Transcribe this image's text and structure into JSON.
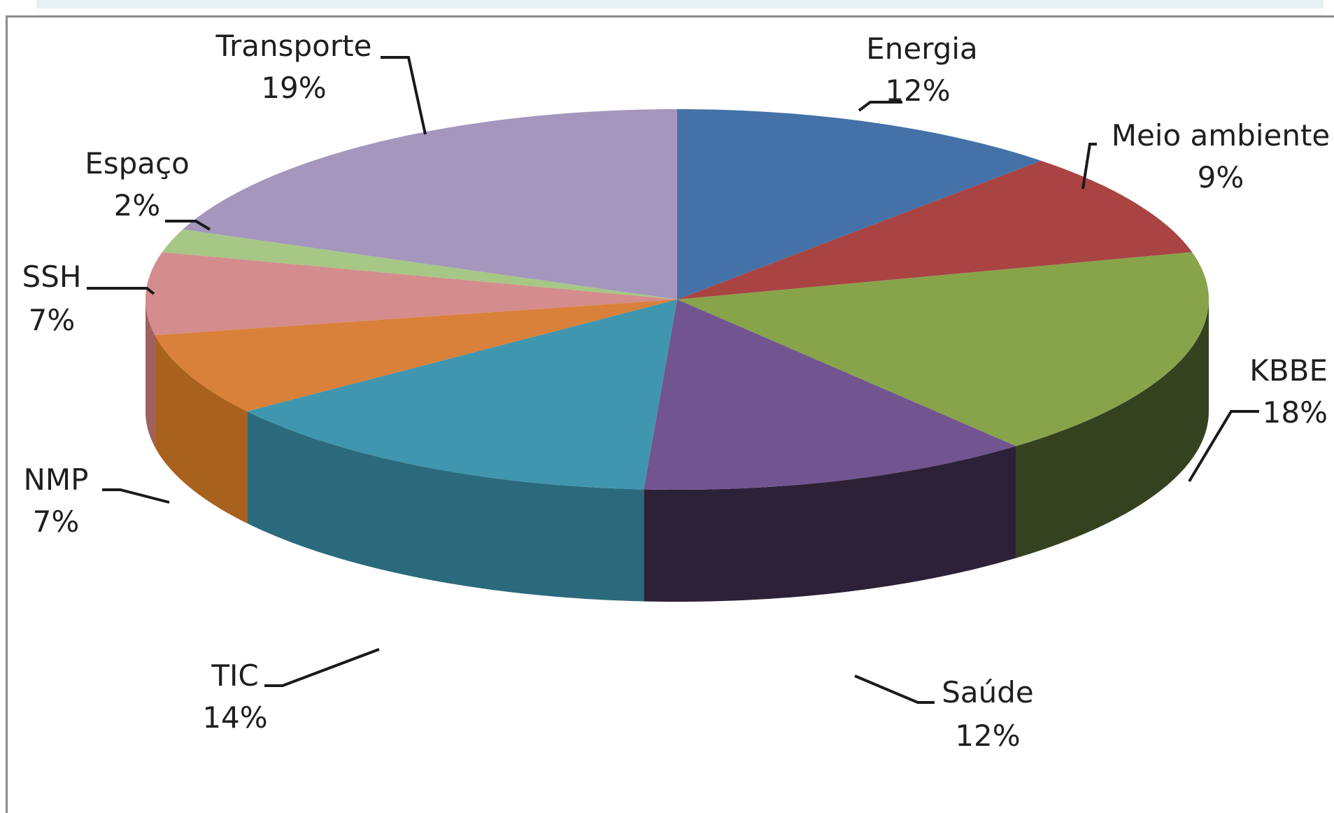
{
  "chart_data": {
    "type": "pie",
    "style": "3d",
    "categories": [
      "Energia",
      "Meio ambiente",
      "KBBE",
      "Saúde",
      "TIC",
      "NMP",
      "SSH",
      "Espaço",
      "Transporte"
    ],
    "values": [
      12,
      9,
      18,
      12,
      14,
      7,
      7,
      2,
      19
    ],
    "value_labels": [
      "12%",
      "9%",
      "18%",
      "12%",
      "14%",
      "7%",
      "7%",
      "2%",
      "19%"
    ],
    "colors": [
      "#4472a8",
      "#a94442",
      "#87a44b",
      "#725490",
      "#4096ae",
      "#d9813a",
      "#d48c8c",
      "#a6c786",
      "#a496bd"
    ],
    "side_colors": [
      "#2e4f75",
      "#6b2826",
      "#344220",
      "#2d2138",
      "#2b6a7c",
      "#a9621e",
      "#9e6060",
      "#6f8b57",
      "#6e6283"
    ],
    "title": "",
    "legend": "none"
  }
}
